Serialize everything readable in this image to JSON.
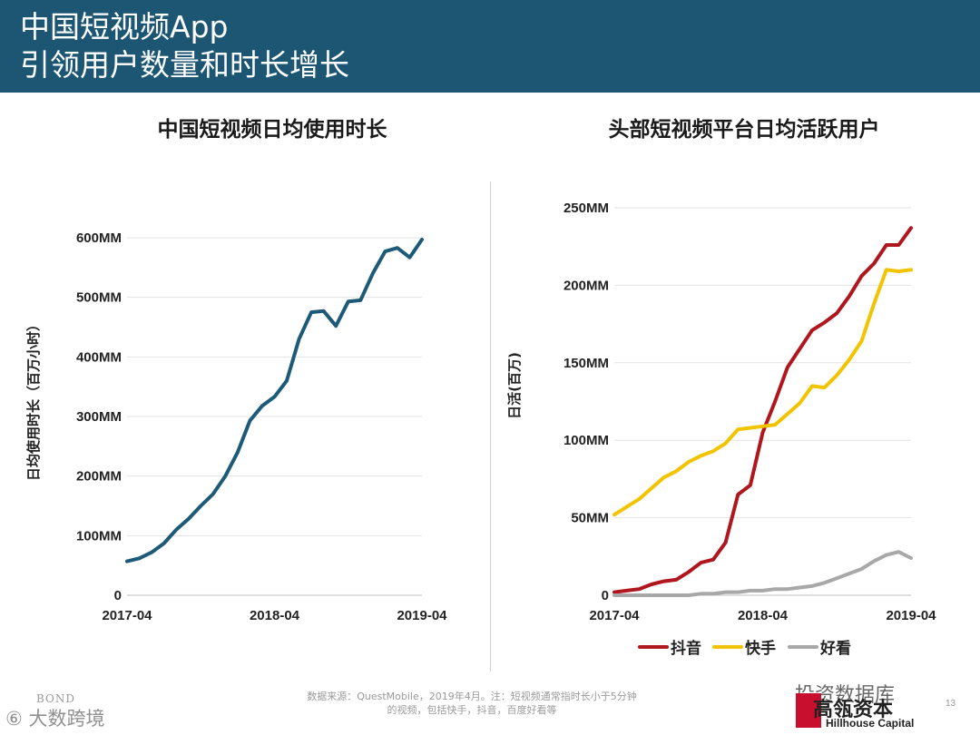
{
  "header": {
    "title_line1": "中国短视频App",
    "title_line2": "引领用户数量和时长增长"
  },
  "chart_data": [
    {
      "type": "line",
      "title": "中国短视频日均使用时长",
      "ylabel": "日均使用时长（百万小时）",
      "xlabel": "",
      "ylim": [
        0,
        600
      ],
      "yticks": [
        0,
        100,
        200,
        300,
        400,
        500,
        600
      ],
      "ytick_labels": [
        "0",
        "100MM",
        "200MM",
        "300MM",
        "400MM",
        "500MM",
        "600MM"
      ],
      "x_ticks": [
        {
          "index": 0,
          "label": "2017-04"
        },
        {
          "index": 12,
          "label": "2018-04"
        },
        {
          "index": 24,
          "label": "2019-04"
        }
      ],
      "series": [
        {
          "name": "日均使用时长",
          "color": "#1d5a78",
          "values": [
            57,
            62,
            72,
            87,
            110,
            128,
            150,
            170,
            200,
            240,
            293,
            318,
            333,
            360,
            430,
            475,
            477,
            452,
            493,
            495,
            540,
            577,
            583,
            567,
            597
          ]
        }
      ]
    },
    {
      "type": "line",
      "title": "头部短视频平台日均活跃用户",
      "ylabel": "日活(百万)",
      "xlabel": "",
      "ylim": [
        0,
        250
      ],
      "yticks": [
        0,
        50,
        100,
        150,
        200,
        250
      ],
      "ytick_labels": [
        "0",
        "50MM",
        "100MM",
        "150MM",
        "200MM",
        "250MM"
      ],
      "x_ticks": [
        {
          "index": 0,
          "label": "2017-04"
        },
        {
          "index": 12,
          "label": "2018-04"
        },
        {
          "index": 24,
          "label": "2019-04"
        }
      ],
      "legend": "bottom",
      "series": [
        {
          "name": "抖音",
          "color": "#b0161d",
          "values": [
            2,
            3,
            4,
            7,
            9,
            10,
            15,
            21,
            23,
            34,
            65,
            71,
            105,
            125,
            147,
            159,
            171,
            176,
            182,
            193,
            206,
            214,
            226,
            226,
            237
          ]
        },
        {
          "name": "快手",
          "color": "#f2c300",
          "values": [
            52,
            57,
            62,
            69,
            76,
            80,
            86,
            90,
            93,
            98,
            107,
            108,
            109,
            110,
            117,
            124,
            135,
            134,
            142,
            152,
            164,
            188,
            210,
            209,
            210
          ]
        },
        {
          "name": "好看",
          "color": "#a8a8a8",
          "values": [
            0,
            0,
            0,
            0,
            0,
            0,
            0,
            1,
            1,
            2,
            2,
            3,
            3,
            4,
            4,
            5,
            6,
            8,
            11,
            14,
            17,
            22,
            26,
            28,
            24
          ]
        }
      ]
    }
  ],
  "footer": {
    "source_line1": "数据来源：QuestMobile，2019年4月。注：短视频通常指时长小于5分钟",
    "source_line2": "的视频，包括快手，抖音，百度好看等",
    "bond": "BOND",
    "watermark_left": "⑥ 大数跨境",
    "watermark_right": "投资数据库",
    "logo_cn": "高瓴资本",
    "logo_en": "Hillhouse Capital",
    "page_number": "13"
  }
}
